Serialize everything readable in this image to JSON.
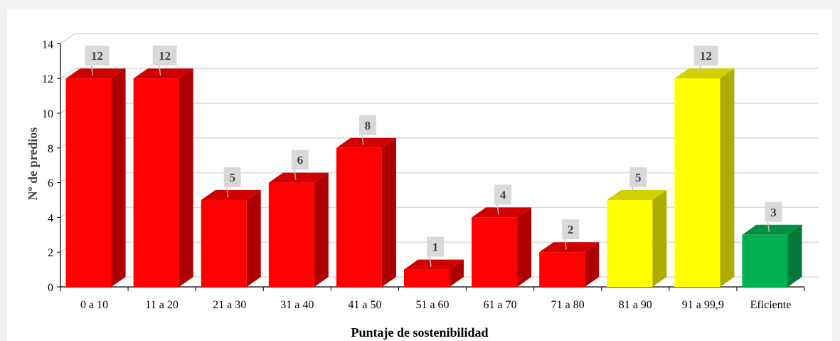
{
  "chart_data": {
    "type": "bar",
    "title": "",
    "xlabel": "Puntaje de sostenibilidad",
    "ylabel": "Nº de predios",
    "ylim": [
      0,
      14
    ],
    "yticks": [
      0,
      2,
      4,
      6,
      8,
      10,
      12,
      14
    ],
    "grid": true,
    "legend": "none",
    "style": "3d-column",
    "categories": [
      "0 a 10",
      "11 a 20",
      "21 a 30",
      "31 a 40",
      "41 a 50",
      "51 a 60",
      "61 a 70",
      "71 a 80",
      "81 a 90",
      "91 a 99,9",
      "Eficiente"
    ],
    "values": [
      12,
      12,
      5,
      6,
      8,
      1,
      4,
      2,
      5,
      12,
      3
    ],
    "bar_colors": [
      "#ff0000",
      "#ff0000",
      "#ff0000",
      "#ff0000",
      "#ff0000",
      "#ff0000",
      "#ff0000",
      "#ff0000",
      "#ffff00",
      "#ffff00",
      "#00b050"
    ]
  }
}
